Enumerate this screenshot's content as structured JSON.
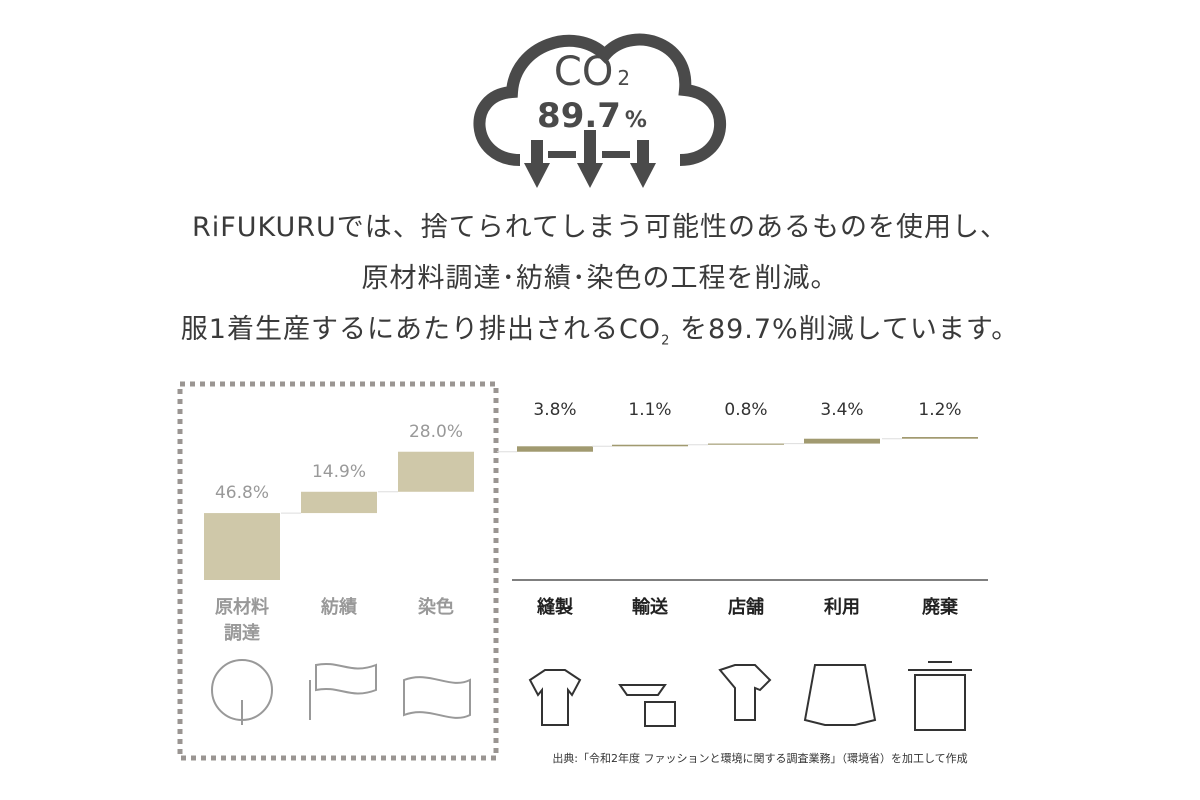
{
  "header": {
    "co2": "CO",
    "co2_sub": "2",
    "reduction_value": "89.7",
    "reduction_unit": "%",
    "lines": [
      "RiFUKURUでは、捨てられてしまう可能性のあるものを使用し、",
      "原材料調達･紡績･染色の工程を削減。"
    ],
    "line3": {
      "before": "服1着生産するにあたり排出されるCO",
      "sub": "2",
      "after": " を89.7%削減しています。"
    }
  },
  "chart_data": {
    "type": "waterfall",
    "categories": [
      "原材料調達",
      "紡績",
      "染色",
      "縫製",
      "輸送",
      "店舗",
      "利用",
      "廃棄"
    ],
    "values": [
      46.8,
      14.9,
      28.0,
      3.8,
      1.1,
      0.8,
      3.4,
      1.2
    ],
    "value_labels": [
      "46.8%",
      "14.9%",
      "28.0%",
      "3.8%",
      "1.1%",
      "0.8%",
      "3.4%",
      "1.2%"
    ],
    "colors": [
      "#cfc8a9",
      "#cfc8a9",
      "#cfc8a9",
      "#a19a70",
      "#a19a70",
      "#a19a70",
      "#a19a70",
      "#a19a70"
    ]
  },
  "source": "出典:「令和2年度 ファッションと環境に関する調査業務」（環境省）を加工して作成"
}
